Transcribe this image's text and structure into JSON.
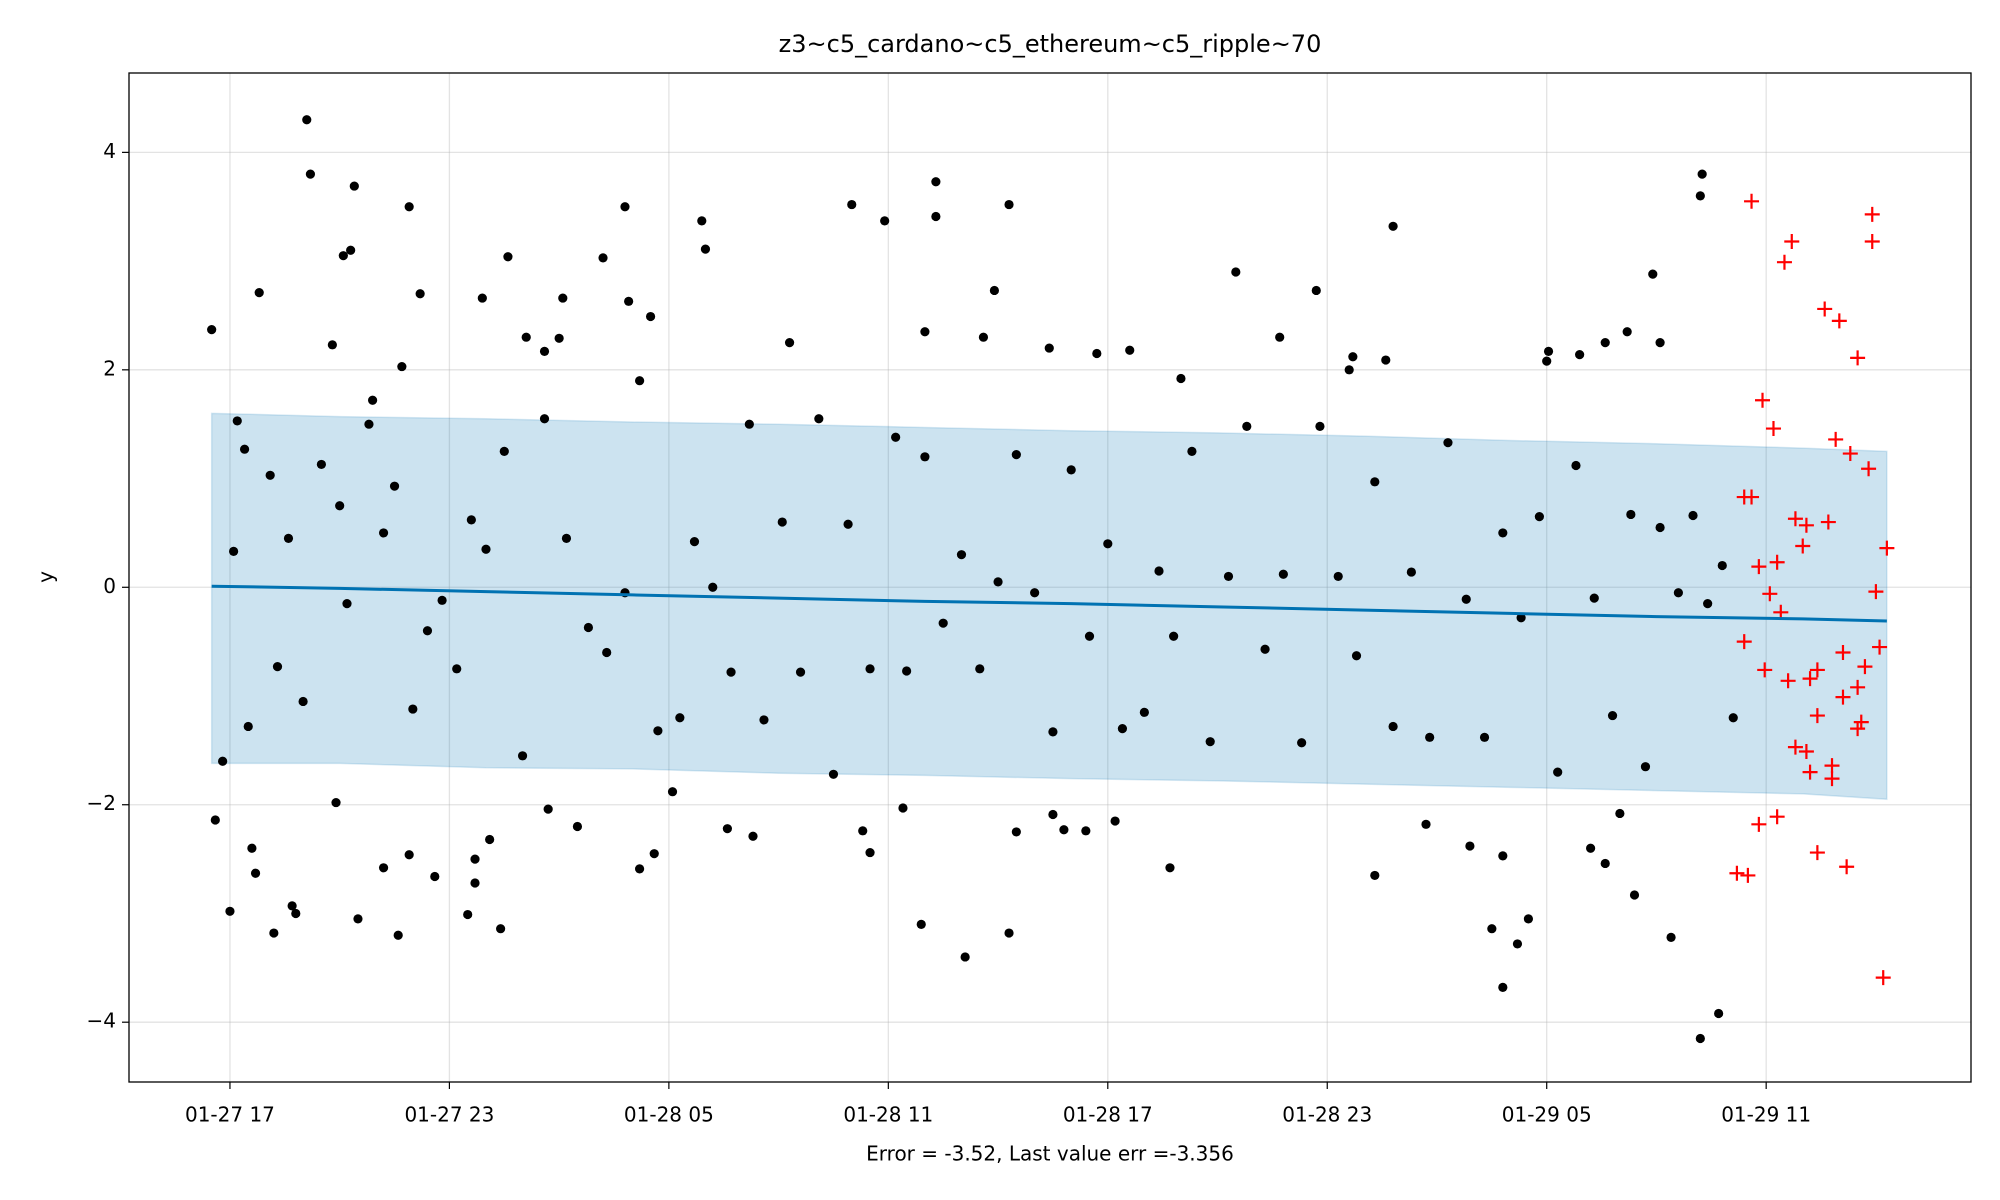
{
  "chart_data": {
    "type": "scatter",
    "title": "z3~c5_cardano~c5_ethereum~c5_ripple~70",
    "xlabel": "Error = -3.52, Last value err =-3.356",
    "ylabel": "y",
    "xlim": [
      14.24,
      64.6
    ],
    "ylim": [
      -4.55,
      4.73
    ],
    "xticks": [
      {
        "value": 17,
        "label": "01-27 17"
      },
      {
        "value": 23,
        "label": "01-27 23"
      },
      {
        "value": 29,
        "label": "01-28 05"
      },
      {
        "value": 35,
        "label": "01-28 11"
      },
      {
        "value": 41,
        "label": "01-28 17"
      },
      {
        "value": 47,
        "label": "01-28 23"
      },
      {
        "value": 53,
        "label": "01-29 05"
      },
      {
        "value": 59,
        "label": "01-29 11"
      }
    ],
    "yticks": [
      {
        "value": -4,
        "label": "−4"
      },
      {
        "value": -2,
        "label": "−2"
      },
      0,
      2,
      4
    ],
    "grid": true,
    "forecast": {
      "color": "#0072b2",
      "band_color": "#0072b2",
      "x": [
        16.5,
        20,
        24,
        28,
        32,
        36,
        40,
        44,
        48,
        52,
        56,
        60,
        62.3
      ],
      "values": [
        0.01,
        -0.01,
        -0.04,
        -0.07,
        -0.1,
        -0.13,
        -0.15,
        -0.18,
        -0.21,
        -0.24,
        -0.27,
        -0.29,
        -0.31
      ],
      "upper": [
        1.6,
        1.57,
        1.55,
        1.52,
        1.5,
        1.47,
        1.44,
        1.42,
        1.39,
        1.35,
        1.32,
        1.28,
        1.25
      ],
      "lower": [
        -1.62,
        -1.62,
        -1.66,
        -1.67,
        -1.71,
        -1.73,
        -1.76,
        -1.78,
        -1.81,
        -1.84,
        -1.87,
        -1.9,
        -1.95
      ]
    },
    "series": [
      {
        "color": "#000000",
        "marker": "dot",
        "x": [
          16.5,
          16.6,
          17.0,
          17.6,
          17.7,
          17.8,
          18.2,
          18.7,
          18.8,
          19.1,
          19.2,
          19.8,
          19.9,
          20.1,
          20.3,
          20.4,
          20.5,
          20.9,
          21.2,
          21.6,
          21.7,
          21.9,
          21.9,
          22.2,
          22.6,
          23.5,
          23.7,
          23.7,
          23.9,
          24.1,
          24.4,
          24.6,
          25.1,
          25.6,
          25.7,
          26.0,
          26.1,
          26.5,
          27.2,
          27.8,
          27.9,
          28.2,
          28.5,
          28.6,
          29.1,
          29.9,
          30.0,
          30.6,
          31.3,
          32.3,
          34.0,
          34.3,
          34.5,
          34.9,
          35.4,
          35.9,
          36.0,
          36.3,
          36.3,
          37.1,
          37.6,
          37.9,
          38.3,
          38.3,
          38.5,
          39.4,
          39.5,
          39.8,
          40.4,
          40.7,
          41.2,
          41.6,
          42.7,
          43.0,
          44.5,
          45.7,
          46.7,
          47.6,
          47.7,
          48.3,
          48.6,
          48.8,
          49.7,
          50.9,
          51.5,
          51.8,
          51.8,
          52.2,
          52.5,
          53.0,
          53.05,
          53.9,
          54.2,
          54.6,
          54.6,
          55.0,
          55.2,
          55.4,
          55.9,
          56.1,
          56.4,
          57.2,
          57.2,
          57.25,
          57.7,
          16.8,
          17.1,
          17.2,
          17.4,
          17.5,
          18.1,
          18.3,
          18.6,
          19.0,
          19.5,
          20.0,
          20.2,
          20.8,
          21.2,
          21.5,
          22.0,
          22.4,
          22.8,
          23.2,
          23.6,
          24.0,
          24.5,
          25.0,
          25.6,
          26.2,
          26.8,
          27.3,
          27.8,
          28.2,
          28.7,
          29.3,
          29.7,
          30.2,
          30.7,
          31.2,
          31.6,
          32.1,
          32.6,
          33.1,
          33.5,
          33.9,
          34.5,
          35.2,
          35.5,
          36.0,
          36.5,
          37.0,
          37.5,
          38.0,
          38.5,
          39.0,
          39.5,
          40.0,
          40.5,
          41.0,
          41.4,
          42.0,
          42.4,
          42.8,
          43.3,
          43.8,
          44.3,
          44.8,
          45.3,
          45.8,
          46.3,
          46.8,
          47.3,
          47.8,
          48.3,
          48.8,
          49.3,
          49.8,
          50.3,
          50.8,
          51.3,
          51.8,
          52.3,
          52.8,
          53.3,
          53.8,
          54.3,
          54.8,
          55.3,
          55.7,
          56.1,
          56.6,
          57.0,
          57.4,
          57.8,
          58.1
        ],
        "values": [
          2.37,
          -2.14,
          -2.98,
          -2.4,
          -2.63,
          2.71,
          -3.18,
          -2.93,
          -3.0,
          4.3,
          3.8,
          2.23,
          -1.98,
          3.05,
          3.1,
          3.69,
          -3.05,
          1.72,
          -2.58,
          -3.2,
          2.03,
          -2.46,
          3.5,
          2.7,
          -2.66,
          -3.01,
          -2.5,
          -2.72,
          2.66,
          -2.32,
          -3.14,
          3.04,
          2.3,
          2.17,
          -2.04,
          2.29,
          2.66,
          -2.2,
          3.03,
          3.5,
          2.63,
          -2.59,
          2.49,
          -2.45,
          -1.88,
          3.37,
          3.11,
          -2.22,
          -2.29,
          2.25,
          3.52,
          -2.24,
          -2.44,
          3.37,
          -2.03,
          -3.1,
          2.35,
          3.41,
          3.73,
          -3.4,
          2.3,
          2.73,
          3.52,
          -3.18,
          -2.25,
          2.2,
          -2.09,
          -2.23,
          -2.24,
          2.15,
          -2.15,
          2.18,
          -2.58,
          1.92,
          2.9,
          2.3,
          2.73,
          2.0,
          2.12,
          -2.65,
          2.09,
          3.32,
          -2.18,
          -2.38,
          -3.14,
          -3.68,
          -2.47,
          -3.28,
          -3.05,
          2.08,
          2.17,
          2.14,
          -2.4,
          -2.54,
          2.25,
          -2.08,
          2.35,
          -2.83,
          2.88,
          2.25,
          -3.22,
          3.6,
          -4.15,
          3.8,
          -3.92,
          -1.6,
          0.33,
          1.53,
          1.27,
          -1.28,
          1.03,
          -0.73,
          0.45,
          -1.05,
          1.13,
          0.75,
          -0.15,
          1.5,
          0.5,
          0.93,
          -1.12,
          -0.4,
          -0.12,
          -0.75,
          0.62,
          0.35,
          1.25,
          -1.55,
          1.55,
          0.45,
          -0.37,
          -0.6,
          -0.05,
          1.9,
          -1.32,
          -1.2,
          0.42,
          0,
          -0.78,
          1.5,
          -1.22,
          0.6,
          -0.78,
          1.55,
          -1.72,
          0.58,
          -0.75,
          1.38,
          -0.77,
          1.2,
          -0.33,
          0.3,
          -0.75,
          0.05,
          1.22,
          -0.05,
          -1.33,
          1.08,
          -0.45,
          0.4,
          -1.3,
          -1.15,
          0.15,
          -0.45,
          1.25,
          -1.42,
          0.1,
          1.48,
          -0.57,
          0.12,
          -1.43,
          1.48,
          0.1,
          -0.63,
          0.97,
          -1.28,
          0.14,
          -1.38,
          1.33,
          -0.11,
          -1.38,
          0.5,
          -0.28,
          0.65,
          -1.7,
          1.12,
          -0.1,
          -1.18,
          0.67,
          -1.65,
          0.55,
          -0.05,
          0.66,
          -0.15,
          0.2,
          -1.2
        ]
      },
      {
        "color": "#ff0000",
        "marker": "plus",
        "x": [
          58.6,
          58.9,
          59.2,
          59.7,
          59.5,
          58.4,
          58.6,
          58.8,
          59.1,
          59.3,
          59.4,
          58.4,
          58.96,
          59.6,
          59.8,
          60.1,
          60.0,
          59.8,
          60.1,
          60.2,
          60.2,
          60.4,
          60.4,
          60.7,
          60.6,
          61.0,
          60.9,
          60.8,
          60.8,
          61.1,
          61.3,
          61.5,
          61.1,
          61.5,
          61.5,
          61.6,
          61.7,
          61.8,
          61.9,
          61.9,
          62.0,
          62.1,
          62.3,
          62.2,
          61.2,
          60.4,
          59.3,
          58.8,
          58.2,
          58.5
        ],
        "values": [
          3.55,
          1.72,
          1.46,
          3.18,
          2.99,
          0.83,
          0.83,
          0.19,
          -0.06,
          0.23,
          -0.23,
          -0.5,
          -0.76,
          -0.86,
          0.63,
          0.57,
          0.38,
          -1.47,
          -1.51,
          -1.7,
          -0.84,
          -0.76,
          -1.18,
          0.6,
          2.56,
          2.45,
          1.36,
          -1.76,
          -1.64,
          -1.01,
          1.23,
          2.11,
          -0.6,
          -0.92,
          -1.3,
          -1.24,
          -0.73,
          1.09,
          3.43,
          3.18,
          -0.04,
          -0.55,
          0.36,
          -3.59,
          -2.57,
          -2.44,
          -2.11,
          -2.18,
          -2.63,
          -2.65
        ]
      }
    ]
  }
}
